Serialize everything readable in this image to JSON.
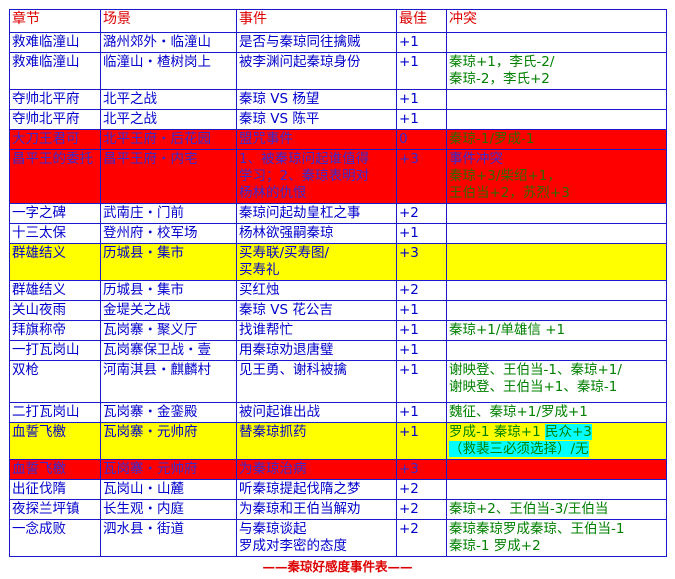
{
  "headers": {
    "chapter": "章节",
    "scene": "场景",
    "event": "事件",
    "best": "最佳",
    "conflict": "冲突"
  },
  "colors": {
    "text": "#0000cc",
    "header": "#dd0000",
    "conflict": "#008000",
    "red_row": "#ff0000",
    "yellow_row": "#ffff00",
    "highlight": "#00ffff"
  },
  "rows": [
    {
      "chapter": "救难临潼山",
      "scene": "潞州郊外・临潼山",
      "event": "是否与秦琼同往擒贼",
      "best": "+1",
      "conflict": ""
    },
    {
      "chapter": "救难临潼山",
      "scene": "临潼山・楂树岗上",
      "event": "被李渊问起秦琼身份",
      "best": "+1",
      "conflict": "秦琼+1，李氏-2/\n秦琼-2，李氏+2"
    },
    {
      "chapter": "夺帅北平府",
      "scene": "北平之战",
      "event": "秦琼 VS 杨望",
      "best": "+1",
      "conflict": ""
    },
    {
      "chapter": "夺帅北平府",
      "scene": "北平之战",
      "event": "秦琼 VS 陈平",
      "best": "+1",
      "conflict": ""
    },
    {
      "chapter": "大刀王君可",
      "scene": "北平王府・后花园",
      "event": "盟咒事件",
      "best": "0",
      "conflict": "秦琼-1/罗成-1",
      "highlight": "red"
    },
    {
      "chapter": "昌平王的委托",
      "scene": "昌平王府・内宅",
      "event": "1、被秦琼问起谁值得\n学习；2、秦琼表明对\n杨林的仇恨",
      "best": "+3",
      "conflict_title": "事件冲突",
      "conflict": "秦琼+3/柴绍+1，\n王伯当+2，苏烈+3",
      "highlight": "red"
    },
    {
      "chapter": "一字之碑",
      "scene": "武南庄・门前",
      "event": "秦琼问起劫皇杠之事",
      "best": "+2",
      "conflict": ""
    },
    {
      "chapter": "十三太保",
      "scene": "登州府・校军场",
      "event": "杨林欲强嗣秦琼",
      "best": "+1",
      "conflict": ""
    },
    {
      "chapter": "群雄结义",
      "scene": "历城县・集市",
      "event": "买寿联/买寿图/\n买寿礼",
      "best": "+3",
      "conflict": "",
      "highlight": "yellow"
    },
    {
      "chapter": "群雄结义",
      "scene": "历城县・集市",
      "event": "买红烛",
      "best": "+2",
      "conflict": ""
    },
    {
      "chapter": "关山夜雨",
      "scene": "金堤关之战",
      "event": "秦琼 VS 花公吉",
      "best": "+1",
      "conflict": ""
    },
    {
      "chapter": "拜旗称帝",
      "scene": "瓦岗寨・聚义厅",
      "event": " 找谁帮忙",
      "best": "+1",
      "conflict": "秦琼+1/单雄信 +1"
    },
    {
      "chapter": "一打瓦岗山",
      "scene": "瓦岗寨保卫战・壹",
      "event": "用秦琼劝退唐璧",
      "best": "+1",
      "conflict": ""
    },
    {
      "chapter": "双枪",
      "scene": "河南淇县・麒麟村",
      "event": "见王勇、谢科被擒",
      "best": "+1",
      "conflict": "谢映登、王伯当-1、秦琼+1/\n谢映登、王伯当+1、秦琼-1"
    },
    {
      "chapter": "二打瓦岗山",
      "scene": "瓦岗寨・金銮殿",
      "event": "被问起谁出战",
      "best": "+1",
      "conflict": "魏征、秦琼+1/罗成+1"
    },
    {
      "chapter": "血誓飞檄",
      "scene": "瓦岗寨・元帅府",
      "event": "替秦琼抓药",
      "best": "+1",
      "conflict": "罗成-1 秦琼+1 ",
      "conflict_highlighted": "民众+3\n（救裴三必须选择）/无",
      "highlight": "yellow"
    },
    {
      "chapter": "血誓飞檄",
      "scene": "瓦岗寨・元帅府",
      "event": "为秦琼治病",
      "best": "+3",
      "conflict": "",
      "highlight": "red"
    },
    {
      "chapter": "出征伐隋",
      "scene": "瓦岗山・山麓",
      "event": "听秦琼提起伐隋之梦",
      "best": "+2",
      "conflict": ""
    },
    {
      "chapter": "夜探兰坪镇",
      "scene": "长生观・内庭",
      "event": "为秦琼和王伯当解劝",
      "best": "+2",
      "conflict": "秦琼+2、王伯当-3/王伯当"
    },
    {
      "chapter": "一念成败",
      "scene": "泗水县・街道",
      "event": "与秦琼谈起\n罗成对李密的态度",
      "best": "+2",
      "conflict": "秦琼秦琼罗成秦琼、王伯当-1\n秦琼-1 罗成+2"
    }
  ],
  "caption": "——秦琼好感度事件表——"
}
